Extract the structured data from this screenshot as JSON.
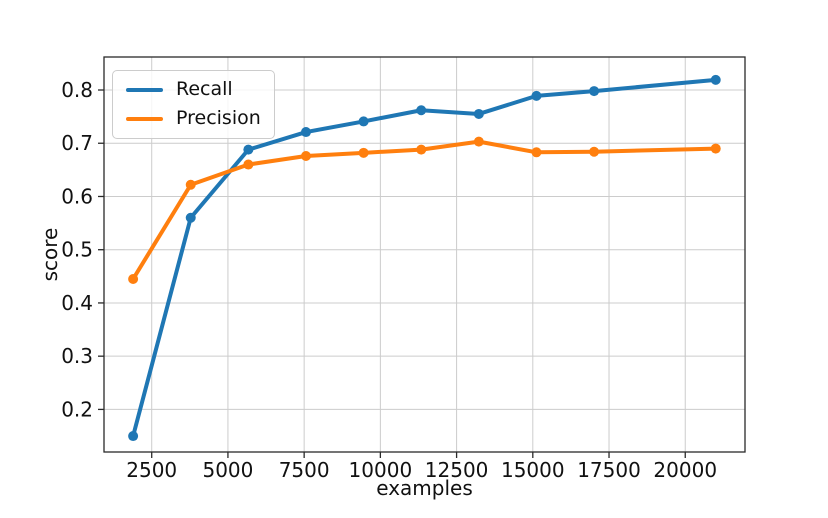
{
  "chart_data": {
    "type": "line",
    "title": "",
    "xlabel": "examples",
    "ylabel": "score",
    "x": [
      1890,
      3780,
      5670,
      7560,
      9450,
      11340,
      13230,
      15120,
      17010,
      21000
    ],
    "series": [
      {
        "name": "Recall",
        "color": "#1f77b4",
        "values": [
          0.15,
          0.56,
          0.688,
          0.721,
          0.741,
          0.762,
          0.755,
          0.789,
          0.798,
          0.819
        ]
      },
      {
        "name": "Precision",
        "color": "#ff7f0e",
        "values": [
          0.445,
          0.622,
          0.66,
          0.676,
          0.682,
          0.688,
          0.703,
          0.683,
          0.684,
          0.69
        ]
      }
    ],
    "xlim": [
      935,
      21960
    ],
    "ylim": [
      0.12,
      0.862
    ],
    "xticks": [
      2500,
      5000,
      7500,
      10000,
      12500,
      15000,
      17500,
      20000
    ],
    "xtick_labels": [
      "2500",
      "5000",
      "7500",
      "10000",
      "12500",
      "15000",
      "17500",
      "20000"
    ],
    "yticks": [
      0.2,
      0.3,
      0.4,
      0.5,
      0.6,
      0.7,
      0.8
    ],
    "ytick_labels": [
      "0.2",
      "0.3",
      "0.4",
      "0.5",
      "0.6",
      "0.7",
      "0.8"
    ],
    "grid": true,
    "legend_position": "upper left",
    "line_width": 4,
    "marker": "o",
    "marker_radius": 5,
    "grid_color": "#cccccc",
    "axis_color": "#2a2a2a",
    "background": "#ffffff"
  }
}
